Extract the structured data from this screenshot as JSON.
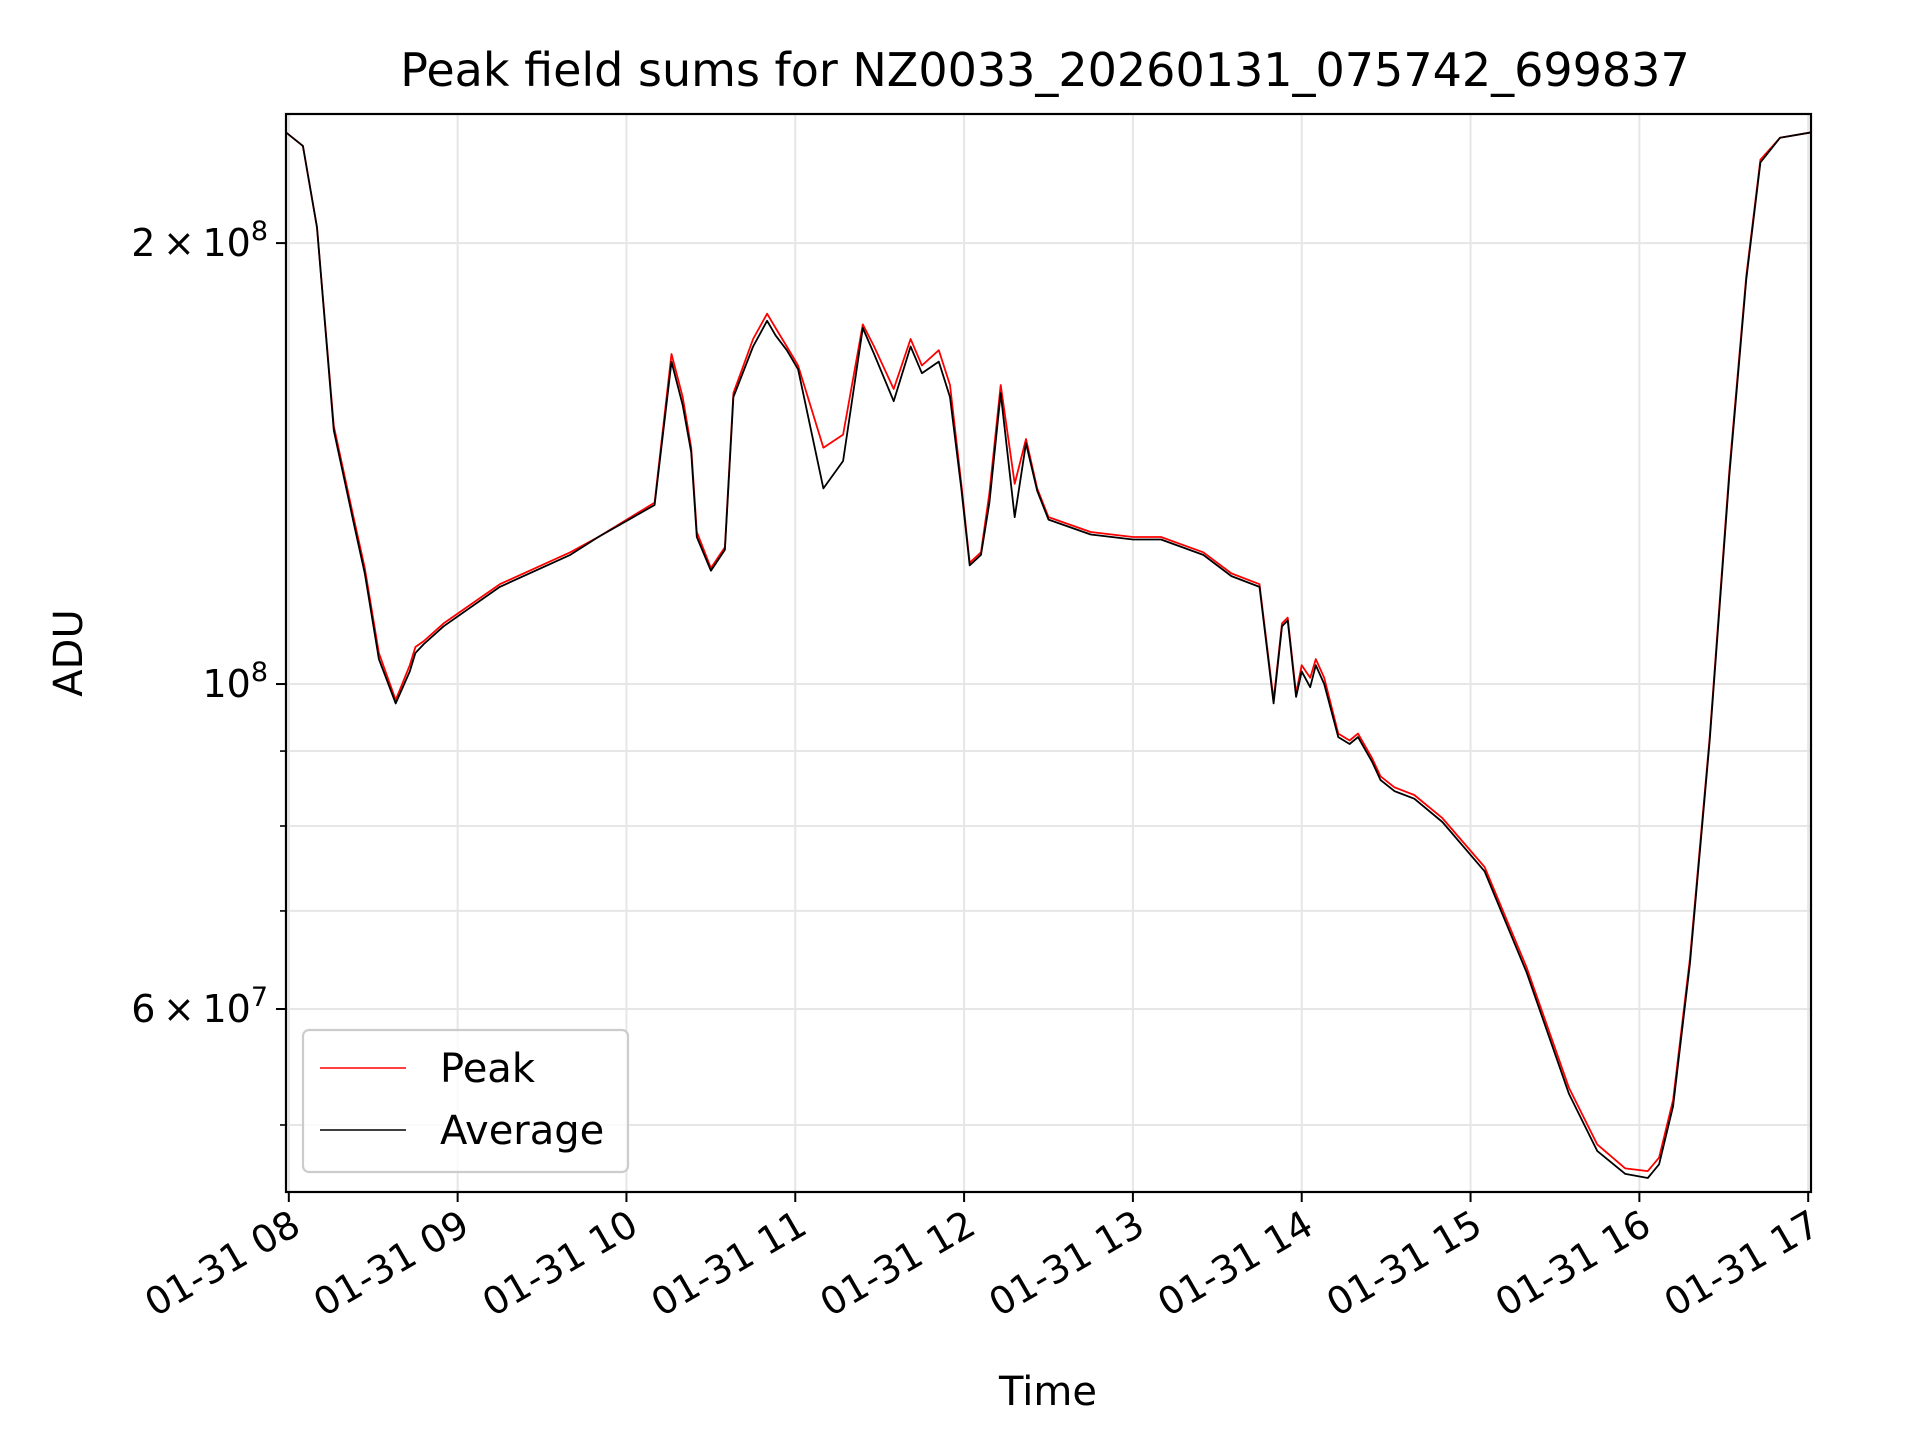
{
  "chart_data": {
    "type": "line",
    "title": "Peak field sums for NZ0033_20260131_075742_699837",
    "xlabel": "Time",
    "ylabel": "ADU",
    "yscale": "log",
    "ylim": [
      45000000,
      245000000
    ],
    "xlim": [
      "2026-01-31 07:59",
      "2026-01-31 17:01"
    ],
    "grid": true,
    "legend_position": "lower-left",
    "x_tick_labels": [
      "01-31 08",
      "01-31 09",
      "01-31 10",
      "01-31 11",
      "01-31 12",
      "01-31 13",
      "01-31 14",
      "01-31 15",
      "01-31 16",
      "01-31 17"
    ],
    "x_tick_values": [
      "2026-01-31 08:00",
      "2026-01-31 09:00",
      "2026-01-31 10:00",
      "2026-01-31 11:00",
      "2026-01-31 12:00",
      "2026-01-31 13:00",
      "2026-01-31 14:00",
      "2026-01-31 15:00",
      "2026-01-31 16:00",
      "2026-01-31 17:00"
    ],
    "y_tick_labels": [
      {
        "value": 200000000,
        "mantissa": "2",
        "exponent": "8"
      },
      {
        "value": 100000000,
        "mantissa": "",
        "exponent": "8"
      },
      {
        "value": 60000000,
        "mantissa": "6",
        "exponent": "7"
      }
    ],
    "y_minor_values": [
      50000000,
      70000000,
      80000000,
      90000000
    ],
    "series": [
      {
        "name": "Peak",
        "color": "#ff0000",
        "x": [
          "2026-01-31 07:59",
          "2026-01-31 08:05",
          "2026-01-31 08:10",
          "2026-01-31 08:16",
          "2026-01-31 08:23",
          "2026-01-31 08:27",
          "2026-01-31 08:32",
          "2026-01-31 08:38",
          "2026-01-31 08:43",
          "2026-01-31 08:45",
          "2026-01-31 08:48",
          "2026-01-31 08:55",
          "2026-01-31 09:15",
          "2026-01-31 09:40",
          "2026-01-31 09:50",
          "2026-01-31 10:10",
          "2026-01-31 10:16",
          "2026-01-31 10:20",
          "2026-01-31 10:23",
          "2026-01-31 10:25",
          "2026-01-31 10:30",
          "2026-01-31 10:35",
          "2026-01-31 10:38",
          "2026-01-31 10:45",
          "2026-01-31 10:50",
          "2026-01-31 10:53",
          "2026-01-31 10:57",
          "2026-01-31 11:01",
          "2026-01-31 11:10",
          "2026-01-31 11:17",
          "2026-01-31 11:24",
          "2026-01-31 11:28",
          "2026-01-31 11:35",
          "2026-01-31 11:41",
          "2026-01-31 11:45",
          "2026-01-31 11:51",
          "2026-01-31 11:55",
          "2026-01-31 11:59",
          "2026-01-31 12:02",
          "2026-01-31 12:06",
          "2026-01-31 12:09",
          "2026-01-31 12:13",
          "2026-01-31 12:18",
          "2026-01-31 12:22",
          "2026-01-31 12:26",
          "2026-01-31 12:30",
          "2026-01-31 12:45",
          "2026-01-31 13:00",
          "2026-01-31 13:10",
          "2026-01-31 13:25",
          "2026-01-31 13:35",
          "2026-01-31 13:45",
          "2026-01-31 13:50",
          "2026-01-31 13:53",
          "2026-01-31 13:55",
          "2026-01-31 13:58",
          "2026-01-31 14:00",
          "2026-01-31 14:03",
          "2026-01-31 14:05",
          "2026-01-31 14:08",
          "2026-01-31 14:13",
          "2026-01-31 14:17",
          "2026-01-31 14:20",
          "2026-01-31 14:25",
          "2026-01-31 14:28",
          "2026-01-31 14:33",
          "2026-01-31 14:40",
          "2026-01-31 14:50",
          "2026-01-31 15:05",
          "2026-01-31 15:20",
          "2026-01-31 15:35",
          "2026-01-31 15:45",
          "2026-01-31 15:55",
          "2026-01-31 16:03",
          "2026-01-31 16:07",
          "2026-01-31 16:12",
          "2026-01-31 16:18",
          "2026-01-31 16:25",
          "2026-01-31 16:32",
          "2026-01-31 16:38",
          "2026-01-31 16:43",
          "2026-01-31 16:50",
          "2026-01-31 17:01"
        ],
        "values": [
          238000000,
          233000000,
          205000000,
          150000000,
          130000000,
          120000000,
          105000000,
          97500000,
          103000000,
          106000000,
          107000000,
          110000000,
          117000000,
          123000000,
          126000000,
          133000000,
          168000000,
          157000000,
          145000000,
          127000000,
          120000000,
          124000000,
          158000000,
          172000000,
          179000000,
          175000000,
          170000000,
          165000000,
          145000000,
          148000000,
          176000000,
          170000000,
          159000000,
          172000000,
          165000000,
          169000000,
          160000000,
          137000000,
          121000000,
          123000000,
          135000000,
          160000000,
          137000000,
          147000000,
          136000000,
          130000000,
          127000000,
          126000000,
          126000000,
          123000000,
          119000000,
          117000000,
          97500000,
          110000000,
          111000000,
          98500000,
          103000000,
          101000000,
          104000000,
          101000000,
          92500000,
          91500000,
          92500000,
          89000000,
          86500000,
          85000000,
          84000000,
          81000000,
          75000000,
          64000000,
          53000000,
          48500000,
          46700000,
          46500000,
          47500000,
          52000000,
          65000000,
          92000000,
          140000000,
          190000000,
          228000000,
          236000000,
          238000000
        ]
      },
      {
        "name": "Average",
        "color": "#000000",
        "x": [
          "2026-01-31 07:59",
          "2026-01-31 08:05",
          "2026-01-31 08:10",
          "2026-01-31 08:16",
          "2026-01-31 08:23",
          "2026-01-31 08:27",
          "2026-01-31 08:32",
          "2026-01-31 08:38",
          "2026-01-31 08:43",
          "2026-01-31 08:45",
          "2026-01-31 08:48",
          "2026-01-31 08:55",
          "2026-01-31 09:15",
          "2026-01-31 09:40",
          "2026-01-31 09:50",
          "2026-01-31 10:10",
          "2026-01-31 10:16",
          "2026-01-31 10:20",
          "2026-01-31 10:23",
          "2026-01-31 10:25",
          "2026-01-31 10:30",
          "2026-01-31 10:35",
          "2026-01-31 10:38",
          "2026-01-31 10:45",
          "2026-01-31 10:50",
          "2026-01-31 10:53",
          "2026-01-31 10:57",
          "2026-01-31 11:01",
          "2026-01-31 11:10",
          "2026-01-31 11:17",
          "2026-01-31 11:24",
          "2026-01-31 11:28",
          "2026-01-31 11:35",
          "2026-01-31 11:41",
          "2026-01-31 11:45",
          "2026-01-31 11:51",
          "2026-01-31 11:55",
          "2026-01-31 11:59",
          "2026-01-31 12:02",
          "2026-01-31 12:06",
          "2026-01-31 12:09",
          "2026-01-31 12:13",
          "2026-01-31 12:18",
          "2026-01-31 12:22",
          "2026-01-31 12:26",
          "2026-01-31 12:30",
          "2026-01-31 12:45",
          "2026-01-31 13:00",
          "2026-01-31 13:10",
          "2026-01-31 13:25",
          "2026-01-31 13:35",
          "2026-01-31 13:45",
          "2026-01-31 13:50",
          "2026-01-31 13:53",
          "2026-01-31 13:55",
          "2026-01-31 13:58",
          "2026-01-31 14:00",
          "2026-01-31 14:03",
          "2026-01-31 14:05",
          "2026-01-31 14:08",
          "2026-01-31 14:13",
          "2026-01-31 14:17",
          "2026-01-31 14:20",
          "2026-01-31 14:25",
          "2026-01-31 14:28",
          "2026-01-31 14:33",
          "2026-01-31 14:40",
          "2026-01-31 14:50",
          "2026-01-31 15:05",
          "2026-01-31 15:20",
          "2026-01-31 15:35",
          "2026-01-31 15:45",
          "2026-01-31 15:55",
          "2026-01-31 16:03",
          "2026-01-31 16:07",
          "2026-01-31 16:12",
          "2026-01-31 16:18",
          "2026-01-31 16:25",
          "2026-01-31 16:32",
          "2026-01-31 16:38",
          "2026-01-31 16:43",
          "2026-01-31 16:50",
          "2026-01-31 17:01"
        ],
        "values": [
          238000000,
          233000000,
          205000000,
          149000000,
          129000000,
          119000000,
          104000000,
          97000000,
          102000000,
          105000000,
          106500000,
          109500000,
          116500000,
          122500000,
          126000000,
          132500000,
          166000000,
          155000000,
          144000000,
          126000000,
          119500000,
          123500000,
          157000000,
          170000000,
          177000000,
          173000000,
          169000000,
          164000000,
          136000000,
          142000000,
          175000000,
          168000000,
          156000000,
          170000000,
          163000000,
          166000000,
          157000000,
          136000000,
          120500000,
          122500000,
          133000000,
          158000000,
          130000000,
          146000000,
          135500000,
          129500000,
          126500000,
          125500000,
          125500000,
          122500000,
          118500000,
          116500000,
          97000000,
          109500000,
          110500000,
          98000000,
          102000000,
          99500000,
          103000000,
          100000000,
          92000000,
          91000000,
          92000000,
          88500000,
          86000000,
          84500000,
          83500000,
          80500000,
          74500000,
          63500000,
          52500000,
          48000000,
          46300000,
          46000000,
          47000000,
          51500000,
          64500000,
          91500000,
          139000000,
          189000000,
          227000000,
          236000000,
          238000000
        ]
      }
    ]
  }
}
